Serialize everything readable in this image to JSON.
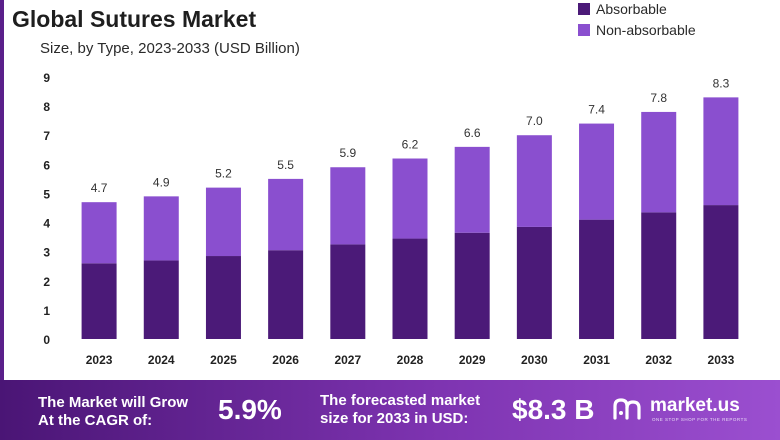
{
  "title": "Global Sutures Market",
  "subtitle": "Size, by Type, 2023-2033 (USD Billion)",
  "legend": [
    {
      "label": "Absorbable",
      "color": "#4b1a78"
    },
    {
      "label": "Non-absorbable",
      "color": "#8a4fcf"
    }
  ],
  "chart_data": {
    "type": "bar",
    "stacked": true,
    "title": "Global Sutures Market",
    "subtitle": "Size, by Type, 2023-2033 (USD Billion)",
    "categories": [
      "2023",
      "2024",
      "2025",
      "2026",
      "2027",
      "2028",
      "2029",
      "2030",
      "2031",
      "2032",
      "2033"
    ],
    "series": [
      {
        "name": "Absorbable",
        "color": "#4b1a78",
        "values": [
          2.6,
          2.7,
          2.85,
          3.05,
          3.25,
          3.45,
          3.65,
          3.85,
          4.1,
          4.35,
          4.6
        ]
      },
      {
        "name": "Non-absorbable",
        "color": "#8a4fcf",
        "values": [
          2.1,
          2.2,
          2.35,
          2.45,
          2.65,
          2.75,
          2.95,
          3.15,
          3.3,
          3.45,
          3.7
        ]
      }
    ],
    "totals": [
      "4.7",
      "4.9",
      "5.2",
      "5.5",
      "5.9",
      "6.2",
      "6.6",
      "7.0",
      "7.4",
      "7.8",
      "8.3"
    ],
    "total_values": [
      4.7,
      4.9,
      5.2,
      5.5,
      5.9,
      6.2,
      6.6,
      7.0,
      7.4,
      7.8,
      8.3
    ],
    "yticks": [
      "0",
      "1",
      "2",
      "3",
      "4",
      "5",
      "6",
      "7",
      "8",
      "9"
    ],
    "ylim": [
      0,
      9
    ],
    "xlabel": "",
    "ylabel": "",
    "grid": false,
    "legend_position": "top-right"
  },
  "footer": {
    "cagr_line1": "The Market will Grow",
    "cagr_line2": "At the CAGR of:",
    "cagr_value": "5.9%",
    "forecast_line1": "The forecasted market",
    "forecast_line2": "size for 2033 in USD:",
    "forecast_value": "$8.3 B",
    "brand_name": "market.us",
    "brand_tagline": "ONE STOP SHOP FOR THE REPORTS"
  }
}
